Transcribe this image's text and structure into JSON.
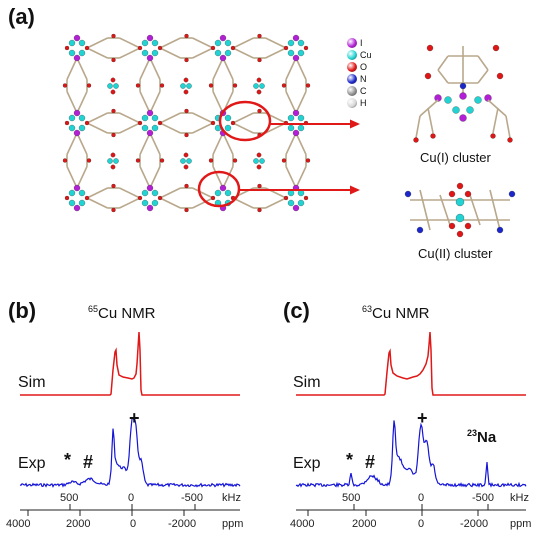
{
  "panel_a": {
    "label": "(a)",
    "legend": [
      {
        "symbol": "I",
        "color": "#b31fd6"
      },
      {
        "symbol": "Cu",
        "color": "#22d3d3"
      },
      {
        "symbol": "O",
        "color": "#e01515"
      },
      {
        "symbol": "N",
        "color": "#1b27c9"
      },
      {
        "symbol": "C",
        "color": "#8f8f8f"
      },
      {
        "symbol": "H",
        "color": "#d8d8d8"
      }
    ],
    "cluster_top_caption": "Cu(I) cluster",
    "cluster_bottom_caption": "Cu(II) cluster"
  },
  "panel_b": {
    "label": "(b)",
    "title_mass": "65",
    "title_rest": "Cu NMR",
    "sim_label": "Sim",
    "exp_label": "Exp",
    "marks": {
      "star": "*",
      "hash": "#",
      "plus": "+"
    },
    "khz_ticks": [
      "500",
      "0",
      "-500"
    ],
    "khz_unit": "kHz",
    "ppm_ticks": [
      "4000",
      "2000",
      "0",
      "-2000"
    ],
    "ppm_unit": "ppm"
  },
  "panel_c": {
    "label": "(c)",
    "title_mass": "63",
    "title_rest": "Cu NMR",
    "sim_label": "Sim",
    "exp_label": "Exp",
    "marks": {
      "star": "*",
      "hash": "#",
      "plus": "+"
    },
    "na_mass": "23",
    "na_symbol": "Na",
    "khz_ticks": [
      "500",
      "0",
      "-500"
    ],
    "khz_unit": "kHz",
    "ppm_ticks": [
      "4000",
      "2000",
      "0",
      "-2000"
    ],
    "ppm_unit": "ppm"
  },
  "colors": {
    "sim_line": "#e01818",
    "exp_line": "#1414d6",
    "highlight": "#e01818"
  }
}
